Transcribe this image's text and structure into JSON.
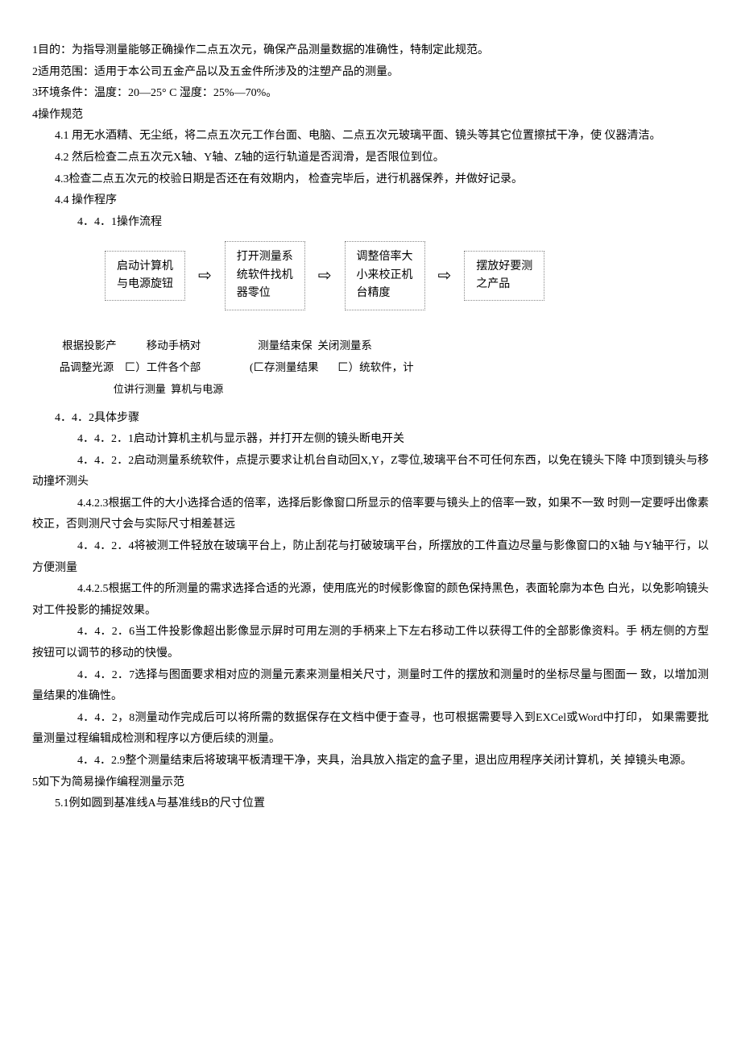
{
  "sections": {
    "s1": "1目的：为指导测量能够正确操作二点五次元，确保产品测量数据的准确性，特制定此规范。",
    "s2": "2适用范围：适用于本公司五金产品以及五金件所涉及的注塑产品的测量。",
    "s3": "3环境条件：温度：20—25°  C 湿度：25%—70%。",
    "s4": "4操作规范",
    "s4_1": "4.1  用无水酒精、无尘纸，将二点五次元工作台面、电脑、二点五次元玻璃平面、镜头等其它位置擦拭干净，使 仪器清洁。",
    "s4_2": "4.2     然后检查二点五次元X轴、Y轴、Z轴的运行轨道是否润滑，是否限位到位。",
    "s4_3": "4.3检查二点五次元的校验日期是否还在有效期内，     检查完毕后，进行机器保养，并做好记录。",
    "s4_4": "4.4     操作程序",
    "s4_4_1": "4．4．1操作流程"
  },
  "flowchart": {
    "boxes": [
      "启动计算机\n与电源旋钮",
      "打开测量系\n统软件找机\n器零位",
      "调整倍率大\n小来校正机\n台精度",
      "摆放好要测\n之产品"
    ],
    "text_row1": "           根据投影产           移动手柄对                     测量结束保  关闭测量系",
    "text_row2": "          品调整光源    匚）工件各个部                  (匚存测量结果       匚）统软件，计",
    "text_row3": "                               位讲行测量  算机与电源"
  },
  "steps": {
    "s4_4_2": "4．4．2具体步骤",
    "s4_4_2_1": "4．4．2．1启动计算机主机与显示器，并打开左侧的镜头断电开关",
    "s4_4_2_2": "4．4．2．2启动测量系统软件，点提示要求让机台自动回X,Y，Z零位,玻璃平台不可任何东西，以免在镜头下降 中顶到镜头与移动撞坏测头",
    "s4_4_2_3": "4.4.2.3根据工件的大小选择合适的倍率，选择后影像窗口所显示的倍率要与镜头上的倍率一致，如果不一致 时则一定要呼出像素校正，否则测尺寸会与实际尺寸相差甚远",
    "s4_4_2_4": "4．4．2．4将被测工件轻放在玻璃平台上，防止刮花与打破玻璃平台，所摆放的工件直边尽量与影像窗口的X轴  与Y轴平行，以方便测量",
    "s4_4_2_5": "4.4.2.5根据工件的所测量的需求选择合适的光源，使用底光的时候影像窗的颜色保持黑色，表面轮廓为本色 白光，以免影响镜头对工件投影的捕捉效果。",
    "s4_4_2_6": "4．4．2．6当工件投影像超出影像显示屏时可用左测的手柄来上下左右移动工件以获得工件的全部影像资料。手 柄左侧的方型按钮可以调节的移动的快慢。",
    "s4_4_2_7": "4．4．2．7选择与图面要求相对应的测量元素来测量相关尺寸，测量时工件的摆放和测量时的坐标尽量与图面一 致，以增加测量结果的准确性。",
    "s4_4_2_8": "4．4．2，8测量动作完成后可以将所需的数据保存在文档中便于查寻，也可根据需要导入到EXCel或Word中打印，  如果需要批量测量过程编辑成检测和程序以方便后续的测量。",
    "s4_4_2_9": "4．4．2.9整个测量结束后将玻璃平板清理干净，夹具，治具放入指定的盒子里，退出应用程序关闭计算机，关 掉镜头电源。",
    "s5": "5如下为简易操作编程测量示范",
    "s5_1": "5.1例如圆到基准线A与基准线B的尺寸位置"
  }
}
